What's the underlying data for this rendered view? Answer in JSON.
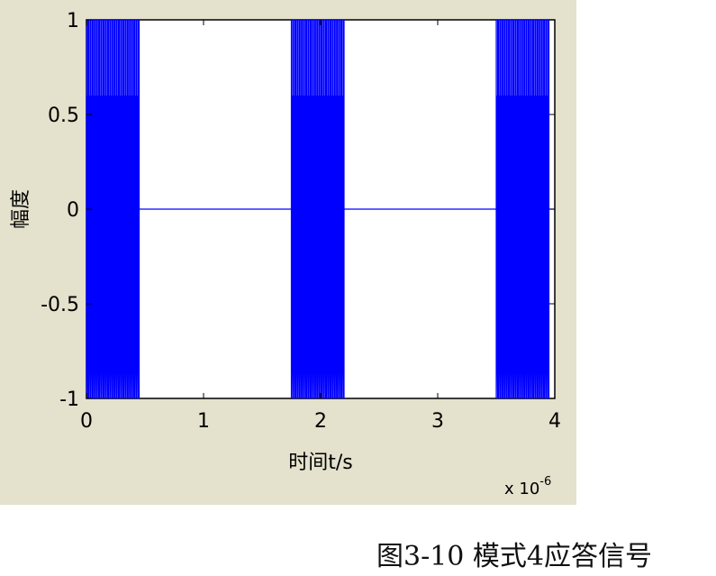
{
  "chart_data": {
    "type": "line",
    "xlabel": "时间t/s",
    "ylabel": "幅度",
    "x_multiplier": "x 10",
    "x_exponent": "-6",
    "xlim": [
      0,
      4
    ],
    "ylim": [
      -1,
      1
    ],
    "xticks": [
      "0",
      "1",
      "2",
      "3",
      "4"
    ],
    "yticks": [
      "1",
      "0.5",
      "0",
      "-0.5",
      "-1"
    ],
    "grid": false,
    "series": [
      {
        "color": "#0000ff",
        "bursts": [
          {
            "start": 0.0,
            "end": 0.45
          },
          {
            "start": 1.75,
            "end": 2.2
          },
          {
            "start": 3.5,
            "end": 3.95
          }
        ],
        "burst_amplitude": 1,
        "idle_value": 0
      }
    ]
  },
  "caption": "图3-10  模式4应答信号"
}
